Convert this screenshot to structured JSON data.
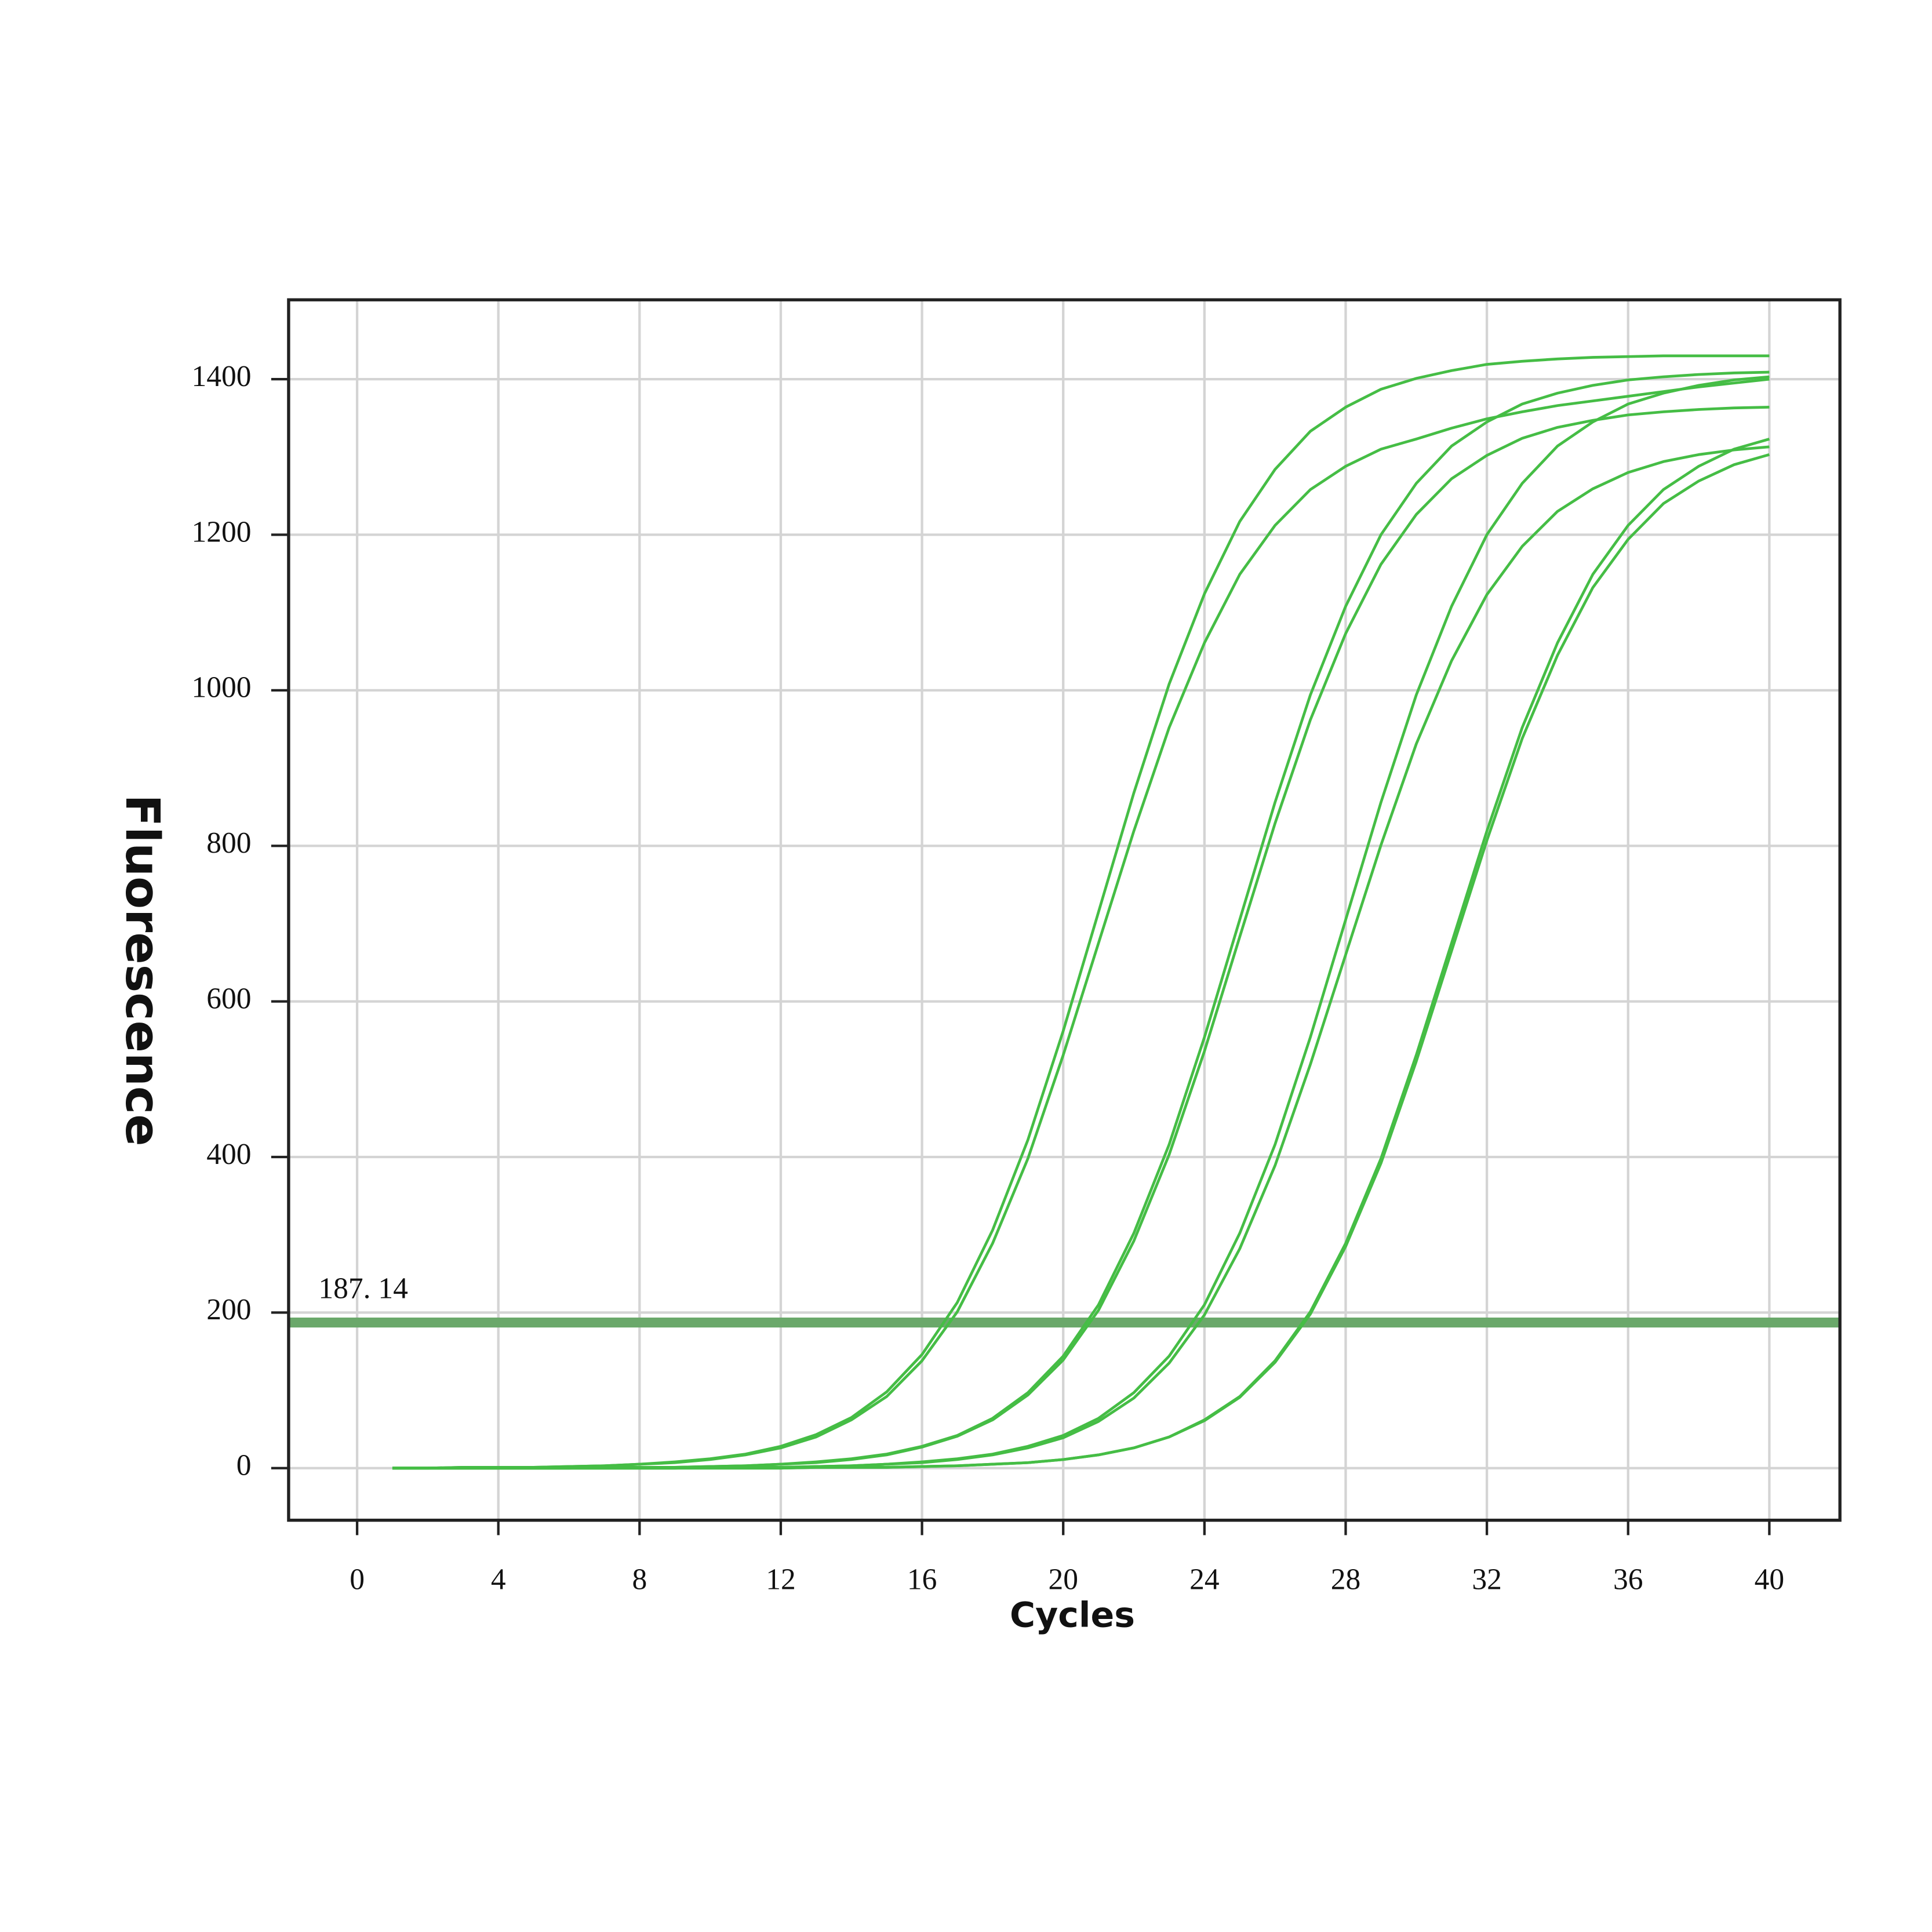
{
  "chart_data": {
    "type": "line",
    "x_label": "Cycles",
    "y_label": "Fluorescence",
    "x": [
      1,
      2,
      3,
      4,
      5,
      6,
      7,
      8,
      9,
      10,
      11,
      12,
      13,
      14,
      15,
      16,
      17,
      18,
      19,
      20,
      21,
      22,
      23,
      24,
      25,
      26,
      27,
      28,
      29,
      30,
      31,
      32,
      33,
      34,
      35,
      36,
      37,
      38,
      39,
      40
    ],
    "series": [
      {
        "color": "#45bd45",
        "values": [
          0,
          0,
          1,
          1,
          1,
          2,
          3,
          5,
          8,
          12,
          18,
          28,
          43,
          65,
          98,
          146,
          213,
          306,
          422,
          562,
          715,
          868,
          1008,
          1124,
          1217,
          1284,
          1333,
          1364,
          1387,
          1401,
          1411,
          1419,
          1423,
          1426,
          1428,
          1429,
          1430,
          1430,
          1430,
          1430
        ]
      },
      {
        "color": "#45bd45",
        "values": [
          0,
          0,
          1,
          1,
          1,
          2,
          3,
          5,
          7,
          11,
          17,
          26,
          40,
          62,
          92,
          138,
          201,
          289,
          398,
          531,
          675,
          819,
          952,
          1061,
          1149,
          1212,
          1258,
          1288,
          1310,
          1323,
          1337,
          1349,
          1358,
          1366,
          1372,
          1378,
          1384,
          1390,
          1395,
          1400
        ]
      },
      {
        "color": "#45bd45",
        "values": [
          0,
          0,
          0,
          0,
          0,
          0,
          1,
          1,
          1,
          2,
          3,
          5,
          8,
          12,
          18,
          28,
          42,
          64,
          97,
          144,
          210,
          302,
          416,
          554,
          705,
          856,
          994,
          1108,
          1200,
          1266,
          1314,
          1345,
          1368,
          1382,
          1392,
          1399,
          1403,
          1406,
          1408,
          1409
        ]
      },
      {
        "color": "#45bd45",
        "values": [
          0,
          0,
          0,
          0,
          0,
          0,
          1,
          1,
          1,
          2,
          3,
          5,
          7,
          11,
          17,
          27,
          41,
          62,
          94,
          139,
          203,
          292,
          403,
          536,
          683,
          829,
          962,
          1073,
          1162,
          1226,
          1272,
          1302,
          1324,
          1338,
          1347,
          1354,
          1358,
          1361,
          1363,
          1364
        ]
      },
      {
        "color": "#45bd45",
        "values": [
          0,
          0,
          0,
          0,
          0,
          0,
          0,
          0,
          0,
          1,
          1,
          1,
          2,
          3,
          5,
          8,
          12,
          18,
          28,
          42,
          64,
          97,
          144,
          210,
          302,
          416,
          554,
          705,
          856,
          994,
          1108,
          1200,
          1266,
          1314,
          1345,
          1368,
          1382,
          1392,
          1399,
          1403
        ]
      },
      {
        "color": "#45bd45",
        "values": [
          0,
          0,
          0,
          0,
          0,
          0,
          0,
          0,
          0,
          1,
          1,
          1,
          2,
          3,
          5,
          7,
          11,
          17,
          26,
          39,
          60,
          90,
          135,
          197,
          282,
          389,
          519,
          660,
          801,
          931,
          1038,
          1123,
          1185,
          1230,
          1259,
          1280,
          1294,
          1303,
          1309,
          1313
        ]
      },
      {
        "color": "#45bd45",
        "values": [
          0,
          0,
          0,
          0,
          0,
          0,
          0,
          0,
          0,
          0,
          0,
          0,
          1,
          1,
          1,
          2,
          3,
          5,
          7,
          11,
          17,
          26,
          40,
          62,
          92,
          138,
          201,
          289,
          398,
          531,
          675,
          819,
          952,
          1061,
          1149,
          1212,
          1258,
          1288,
          1310,
          1323
        ]
      },
      {
        "color": "#45bd45",
        "values": [
          0,
          0,
          0,
          0,
          0,
          0,
          0,
          0,
          0,
          0,
          0,
          0,
          1,
          1,
          1,
          2,
          3,
          5,
          7,
          11,
          17,
          26,
          40,
          61,
          91,
          136,
          198,
          285,
          392,
          523,
          665,
          807,
          938,
          1045,
          1132,
          1194,
          1240,
          1269,
          1290,
          1303
        ]
      }
    ],
    "threshold": {
      "value": 187.14,
      "label": "187. 14",
      "color": "#6aa86a"
    },
    "xlim": [
      -1.94,
      42
    ],
    "ylim": [
      -67,
      1502
    ],
    "xticks": [
      0,
      4,
      8,
      12,
      16,
      20,
      24,
      28,
      32,
      36,
      40
    ],
    "yticks": [
      0,
      200,
      400,
      600,
      800,
      1000,
      1200,
      1400
    ],
    "grid": true
  }
}
